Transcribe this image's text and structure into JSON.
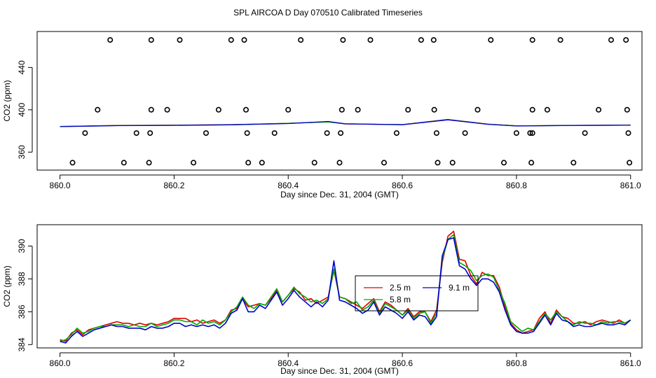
{
  "title": "SPL AIRCOA D  Day 070510  Calibrated Timeseries",
  "chart_data": [
    {
      "type": "scatter",
      "xlabel": "Day since Dec. 31, 2004 (GMT)",
      "ylabel": "CO2 (ppm)",
      "xlim": [
        859.96,
        861.02
      ],
      "ylim": [
        343,
        474
      ],
      "xticks": [
        860.0,
        860.2,
        860.4,
        860.6,
        860.8,
        861.0
      ],
      "xtick_labels": [
        "860.0",
        "860.2",
        "860.4",
        "860.6",
        "860.8",
        "861.0"
      ],
      "yticks": [
        360,
        400,
        440
      ],
      "ytick_labels": [
        "360",
        "400",
        "440"
      ],
      "circle_levels": [
        350,
        378,
        400,
        466
      ],
      "points": [
        [
          860.088,
          466
        ],
        [
          860.16,
          466
        ],
        [
          860.21,
          466
        ],
        [
          860.3,
          466
        ],
        [
          860.323,
          466
        ],
        [
          860.422,
          466
        ],
        [
          860.496,
          466
        ],
        [
          860.544,
          466
        ],
        [
          860.633,
          466
        ],
        [
          860.655,
          466
        ],
        [
          860.755,
          466
        ],
        [
          860.828,
          466
        ],
        [
          860.877,
          466
        ],
        [
          860.966,
          466
        ],
        [
          860.992,
          466
        ],
        [
          860.066,
          400
        ],
        [
          860.16,
          400
        ],
        [
          860.188,
          400
        ],
        [
          860.278,
          400
        ],
        [
          860.326,
          400
        ],
        [
          860.4,
          400
        ],
        [
          860.494,
          400
        ],
        [
          860.522,
          400
        ],
        [
          860.61,
          400
        ],
        [
          860.656,
          400
        ],
        [
          860.732,
          400
        ],
        [
          860.828,
          400
        ],
        [
          860.854,
          400
        ],
        [
          860.944,
          400
        ],
        [
          860.994,
          400
        ],
        [
          860.044,
          378
        ],
        [
          860.134,
          378
        ],
        [
          860.158,
          378
        ],
        [
          860.256,
          378
        ],
        [
          860.328,
          378
        ],
        [
          860.376,
          378
        ],
        [
          860.468,
          378
        ],
        [
          860.492,
          378
        ],
        [
          860.59,
          378
        ],
        [
          860.66,
          378
        ],
        [
          860.71,
          378
        ],
        [
          860.8,
          378
        ],
        [
          860.824,
          378
        ],
        [
          860.828,
          378
        ],
        [
          860.92,
          378
        ],
        [
          860.996,
          378
        ],
        [
          860.022,
          350
        ],
        [
          860.112,
          350
        ],
        [
          860.156,
          350
        ],
        [
          860.234,
          350
        ],
        [
          860.33,
          350
        ],
        [
          860.354,
          350
        ],
        [
          860.446,
          350
        ],
        [
          860.49,
          350
        ],
        [
          860.568,
          350
        ],
        [
          860.662,
          350
        ],
        [
          860.688,
          350
        ],
        [
          860.778,
          350
        ],
        [
          860.826,
          350
        ],
        [
          860.9,
          350
        ],
        [
          860.998,
          350
        ]
      ],
      "line_series": [
        {
          "name": "2.5 m",
          "color": "#dd0000",
          "x": [
            860.0,
            860.1,
            860.2,
            860.3,
            860.4,
            860.47,
            860.5,
            860.6,
            860.68,
            860.75,
            860.8,
            860.9,
            861.0
          ],
          "values": [
            384.2,
            385.3,
            385.5,
            386.0,
            387.2,
            388.6,
            386.6,
            386.0,
            390.9,
            386.5,
            384.8,
            385.3,
            385.5
          ]
        },
        {
          "name": "5.8 m",
          "color": "#00aa00",
          "x": [
            860.0,
            860.1,
            860.2,
            860.3,
            860.4,
            860.47,
            860.5,
            860.6,
            860.68,
            860.75,
            860.8,
            860.9,
            861.0
          ],
          "values": [
            384.2,
            385.1,
            385.4,
            385.9,
            387.2,
            388.5,
            386.8,
            386.0,
            390.7,
            386.4,
            384.8,
            385.2,
            385.5
          ]
        },
        {
          "name": "9.1 m",
          "color": "#0000cc",
          "x": [
            860.0,
            860.1,
            860.2,
            860.3,
            860.4,
            860.47,
            860.5,
            860.6,
            860.68,
            860.75,
            860.8,
            860.9,
            861.0
          ],
          "values": [
            384.1,
            385.0,
            385.3,
            385.8,
            387.0,
            389.0,
            386.7,
            385.9,
            390.5,
            386.3,
            384.7,
            385.2,
            385.5
          ]
        }
      ]
    },
    {
      "type": "line",
      "xlabel": "Day since Dec. 31, 2004 (GMT)",
      "ylabel": "CO2 (ppm)",
      "xlim": [
        859.96,
        861.02
      ],
      "ylim": [
        383.8,
        391.3
      ],
      "xticks": [
        860.0,
        860.2,
        860.4,
        860.6,
        860.8,
        861.0
      ],
      "xtick_labels": [
        "860.0",
        "860.2",
        "860.4",
        "860.6",
        "860.8",
        "861.0"
      ],
      "yticks": [
        384,
        386,
        388,
        390
      ],
      "ytick_labels": [
        "384",
        "386",
        "388",
        "390"
      ],
      "legend": {
        "position": "center",
        "entries": [
          {
            "label": "2.5 m",
            "color": "#dd0000"
          },
          {
            "label": "9.1 m",
            "color": "#0000cc"
          },
          {
            "label": "5.8 m",
            "color": "#00aa00"
          }
        ]
      },
      "x": [
        860.0,
        860.01,
        860.02,
        860.03,
        860.04,
        860.05,
        860.06,
        860.07,
        860.08,
        860.09,
        860.1,
        860.11,
        860.12,
        860.13,
        860.14,
        860.15,
        860.16,
        860.17,
        860.18,
        860.19,
        860.2,
        860.21,
        860.22,
        860.23,
        860.24,
        860.25,
        860.26,
        860.27,
        860.28,
        860.29,
        860.3,
        860.31,
        860.32,
        860.33,
        860.34,
        860.35,
        860.36,
        860.37,
        860.38,
        860.39,
        860.4,
        860.41,
        860.42,
        860.43,
        860.44,
        860.45,
        860.46,
        860.47,
        860.48,
        860.49,
        860.5,
        860.51,
        860.52,
        860.53,
        860.54,
        860.55,
        860.56,
        860.57,
        860.58,
        860.59,
        860.6,
        860.61,
        860.62,
        860.63,
        860.64,
        860.65,
        860.66,
        860.67,
        860.68,
        860.69,
        860.7,
        860.71,
        860.72,
        860.73,
        860.74,
        860.75,
        860.76,
        860.77,
        860.78,
        860.79,
        860.8,
        860.81,
        860.82,
        860.83,
        860.84,
        860.85,
        860.86,
        860.87,
        860.88,
        860.89,
        860.9,
        860.91,
        860.92,
        860.93,
        860.94,
        860.95,
        860.96,
        860.97,
        860.98,
        860.99,
        861.0
      ],
      "series": [
        {
          "name": "2.5 m",
          "color": "#dd0000",
          "values": [
            384.3,
            384.2,
            384.7,
            384.9,
            384.6,
            384.9,
            385.0,
            385.1,
            385.2,
            385.3,
            385.4,
            385.3,
            385.3,
            385.2,
            385.3,
            385.2,
            385.3,
            385.2,
            385.3,
            385.4,
            385.6,
            385.6,
            385.6,
            385.4,
            385.5,
            385.3,
            385.4,
            385.5,
            385.3,
            385.5,
            386.1,
            386.2,
            386.8,
            386.3,
            386.4,
            386.5,
            386.4,
            386.8,
            387.3,
            386.6,
            387.0,
            387.4,
            387.2,
            386.7,
            386.8,
            386.5,
            386.7,
            386.9,
            388.5,
            386.9,
            386.8,
            386.6,
            386.4,
            386.2,
            386.5,
            386.8,
            386.0,
            386.6,
            386.4,
            386.1,
            385.8,
            386.2,
            385.7,
            386.0,
            386.0,
            385.4,
            386.1,
            389.0,
            390.6,
            390.9,
            389.2,
            389.1,
            388.2,
            387.7,
            388.4,
            388.2,
            388.2,
            387.5,
            386.3,
            385.3,
            384.9,
            384.7,
            384.8,
            384.9,
            385.6,
            386.0,
            385.3,
            386.1,
            385.7,
            385.6,
            385.3,
            385.3,
            385.4,
            385.2,
            385.4,
            385.5,
            385.4,
            385.3,
            385.5,
            385.3,
            385.5
          ]
        },
        {
          "name": "5.8 m",
          "color": "#00aa00",
          "values": [
            384.2,
            384.3,
            384.6,
            385.0,
            384.7,
            384.8,
            385.0,
            385.1,
            385.1,
            385.2,
            385.2,
            385.2,
            385.1,
            385.2,
            385.1,
            385.1,
            385.3,
            385.1,
            385.2,
            385.3,
            385.5,
            385.5,
            385.4,
            385.4,
            385.2,
            385.5,
            385.3,
            385.4,
            385.2,
            385.5,
            386.0,
            386.3,
            386.9,
            386.4,
            386.2,
            386.5,
            386.4,
            386.9,
            387.4,
            386.6,
            387.0,
            387.5,
            387.1,
            386.9,
            386.6,
            386.7,
            386.5,
            386.8,
            388.6,
            386.9,
            386.8,
            386.5,
            386.6,
            386.1,
            386.3,
            386.7,
            385.9,
            386.5,
            386.3,
            386.1,
            385.8,
            386.1,
            385.6,
            385.9,
            386.0,
            385.3,
            385.9,
            389.2,
            390.4,
            390.7,
            389.0,
            388.8,
            388.5,
            387.9,
            388.2,
            388.3,
            388.1,
            387.3,
            386.5,
            385.4,
            385.1,
            384.8,
            385.0,
            384.9,
            385.4,
            385.9,
            385.5,
            386.0,
            385.7,
            385.4,
            385.2,
            385.4,
            385.3,
            385.3,
            385.2,
            385.4,
            385.3,
            385.4,
            385.4,
            385.3,
            385.5
          ]
        },
        {
          "name": "9.1 m",
          "color": "#0000cc",
          "values": [
            384.2,
            384.1,
            384.5,
            384.8,
            384.5,
            384.7,
            384.9,
            385.0,
            385.1,
            385.2,
            385.1,
            385.1,
            385.0,
            385.0,
            385.0,
            384.9,
            385.1,
            385.0,
            385.0,
            385.1,
            385.3,
            385.3,
            385.1,
            385.2,
            385.1,
            385.2,
            385.1,
            385.2,
            385.0,
            385.3,
            385.9,
            386.1,
            386.8,
            386.0,
            386.0,
            386.4,
            386.2,
            386.7,
            387.2,
            386.4,
            386.8,
            387.3,
            386.9,
            386.6,
            386.3,
            386.6,
            386.3,
            386.7,
            389.1,
            386.7,
            386.6,
            386.4,
            386.2,
            385.9,
            386.1,
            386.6,
            385.8,
            386.3,
            386.1,
            385.9,
            385.6,
            386.0,
            385.5,
            385.8,
            385.7,
            385.2,
            385.7,
            389.4,
            390.4,
            390.5,
            388.8,
            388.6,
            388.0,
            387.6,
            388.0,
            388.0,
            387.8,
            387.2,
            386.1,
            385.2,
            384.8,
            384.7,
            384.7,
            384.8,
            385.3,
            385.8,
            385.2,
            385.9,
            385.5,
            385.4,
            385.1,
            385.2,
            385.1,
            385.1,
            385.2,
            385.3,
            385.2,
            385.2,
            385.3,
            385.2,
            385.5
          ]
        }
      ]
    }
  ]
}
